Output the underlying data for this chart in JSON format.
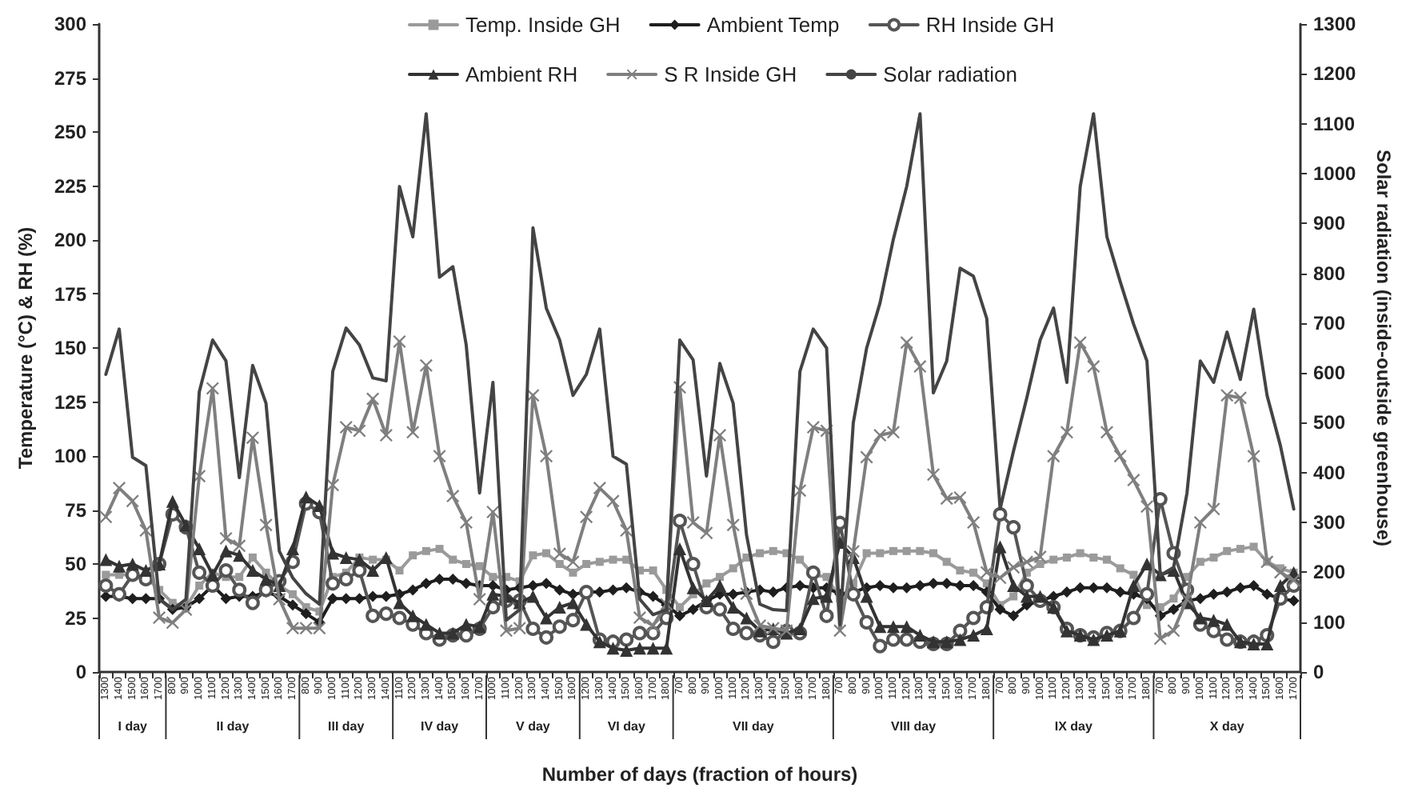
{
  "chart_data": {
    "type": "line",
    "xlabel": "Number of days (fraction of hours)",
    "ylabel": "Temperature (°C) & RH (%)",
    "y2label": "Solar radiation (inside-outside greenhouse)",
    "categories": [
      "1300",
      "1400",
      "1500",
      "1600",
      "1700",
      "800",
      "900",
      "1000",
      "1100",
      "1200",
      "1300",
      "1400",
      "1500",
      "1600",
      "1700",
      "800",
      "900",
      "1000",
      "1100",
      "1200",
      "1300",
      "1400",
      "1100",
      "1200",
      "1300",
      "1400",
      "1500",
      "1600",
      "1700",
      "1000",
      "1100",
      "1200",
      "1300",
      "1400",
      "1500",
      "1600",
      "1200",
      "1300",
      "1400",
      "1500",
      "1600",
      "1700",
      "1800",
      "700",
      "800",
      "900",
      "1000",
      "1100",
      "1200",
      "1300",
      "1400",
      "1500",
      "1600",
      "1700",
      "1800",
      "700",
      "800",
      "900",
      "1000",
      "1100",
      "1200",
      "1300",
      "1400",
      "1500",
      "1600",
      "1700",
      "1800",
      "700",
      "800",
      "900",
      "1000",
      "1100",
      "1200",
      "1300",
      "1400",
      "1500",
      "1600",
      "1700",
      "1800",
      "700",
      "800",
      "900",
      "1000",
      "1100",
      "1200",
      "1300",
      "1400",
      "1500",
      "1600",
      "1700"
    ],
    "annotations": [
      "I day",
      "II day",
      "III day",
      "IV day",
      "V day",
      "VI day",
      "VII day",
      "VIII day",
      "IX day",
      "X day"
    ],
    "series": [
      {
        "name": "Temp. Inside GH",
        "color": "#9a9a9a",
        "marker": "square",
        "values": [
          45,
          45,
          45,
          44,
          38,
          32,
          30,
          40,
          46,
          44,
          44,
          53,
          46,
          40,
          36,
          30,
          28,
          44,
          46,
          53,
          52,
          52,
          47,
          54,
          56,
          57,
          52,
          50,
          49,
          44,
          44,
          42,
          54,
          55,
          50,
          46,
          50,
          51,
          52,
          52,
          47,
          47,
          38,
          30,
          36,
          41,
          44,
          48,
          53,
          55,
          56,
          55,
          52,
          45,
          44,
          34,
          41,
          55,
          55,
          56,
          56,
          56,
          55,
          51,
          47,
          46,
          41,
          31,
          35,
          46,
          50,
          52,
          53,
          55,
          53,
          52,
          48,
          45,
          31,
          30,
          34,
          44,
          51,
          53,
          56,
          57,
          58,
          51,
          48,
          46
        ]
      },
      {
        "name": "Ambient Temp",
        "color": "#1e1e1e",
        "marker": "diamond",
        "values": [
          35,
          35,
          34,
          34,
          34,
          29,
          30,
          34,
          40,
          34,
          35,
          35,
          37,
          35,
          31,
          27,
          23,
          34,
          34,
          34,
          35,
          35,
          36,
          38,
          41,
          43,
          43,
          41,
          40,
          40,
          38,
          39,
          40,
          41,
          38,
          36,
          37,
          37,
          38,
          39,
          37,
          35,
          31,
          26,
          29,
          33,
          36,
          36,
          37,
          38,
          37,
          39,
          40,
          39,
          39,
          36,
          37,
          39,
          40,
          39,
          39,
          40,
          41,
          41,
          40,
          40,
          37,
          29,
          26,
          31,
          33,
          35,
          37,
          39,
          39,
          39,
          37,
          36,
          34,
          26,
          29,
          33,
          34,
          36,
          37,
          39,
          40,
          36,
          34,
          33
        ]
      },
      {
        "name": "RH Inside GH",
        "color": "#555555",
        "marker": "circle",
        "values": [
          40,
          36,
          45,
          43,
          50,
          73,
          67,
          46,
          40,
          47,
          38,
          32,
          38,
          42,
          51,
          78,
          74,
          41,
          43,
          47,
          26,
          27,
          25,
          22,
          18,
          15,
          17,
          17,
          20,
          30,
          33,
          33,
          20,
          16,
          21,
          24,
          37,
          15,
          14,
          15,
          18,
          18,
          25,
          70,
          50,
          30,
          29,
          20,
          18,
          17,
          14,
          19,
          18,
          46,
          26,
          69,
          36,
          23,
          12,
          15,
          15,
          14,
          13,
          13,
          19,
          25,
          30,
          73,
          67,
          40,
          33,
          30,
          20,
          17,
          16,
          18,
          19,
          25,
          36,
          80,
          55,
          38,
          22,
          19,
          15,
          14,
          14,
          17,
          34,
          40
        ]
      },
      {
        "name": "Ambient RH",
        "color": "#333333",
        "marker": "triangle",
        "values": [
          52,
          49,
          50,
          47,
          50,
          79,
          68,
          57,
          45,
          56,
          54,
          47,
          43,
          40,
          57,
          81,
          77,
          55,
          53,
          52,
          47,
          53,
          32,
          26,
          22,
          18,
          18,
          22,
          21,
          36,
          35,
          32,
          35,
          25,
          30,
          32,
          22,
          14,
          11,
          10,
          11,
          11,
          11,
          57,
          39,
          33,
          40,
          30,
          25,
          19,
          20,
          18,
          20,
          34,
          35,
          60,
          53,
          35,
          21,
          21,
          21,
          17,
          14,
          14,
          15,
          17,
          20,
          58,
          40,
          35,
          35,
          30,
          19,
          17,
          15,
          17,
          19,
          40,
          50,
          45,
          47,
          32,
          25,
          24,
          22,
          14,
          13,
          13,
          40,
          46
        ]
      },
      {
        "name": "S R Inside GH",
        "color": "#7f7f7f",
        "marker": "cross",
        "axis": "y2",
        "values": [
          311,
          369,
          343,
          284,
          109,
          99,
          125,
          393,
          569,
          268,
          253,
          470,
          295,
          146,
          88,
          88,
          88,
          375,
          491,
          484,
          548,
          475,
          663,
          481,
          615,
          433,
          353,
          300,
          146,
          321,
          83,
          88,
          555,
          433,
          237,
          221,
          311,
          369,
          343,
          284,
          109,
          93,
          136,
          571,
          300,
          279,
          475,
          295,
          157,
          93,
          88,
          83,
          364,
          491,
          484,
          83,
          242,
          431,
          475,
          481,
          661,
          613,
          396,
          348,
          350,
          300,
          200,
          189,
          210,
          221,
          231,
          433,
          481,
          661,
          613,
          481,
          433,
          385,
          332,
          67,
          83,
          146,
          300,
          327,
          555,
          550,
          433,
          221,
          200,
          184
        ]
      },
      {
        "name": "Solar radiation",
        "color": "#444444",
        "marker": "none",
        "axis": "y2",
        "values": [
          597,
          688,
          431,
          414,
          146,
          125,
          146,
          562,
          666,
          624,
          390,
          615,
          539,
          242,
          189,
          157,
          136,
          603,
          690,
          656,
          590,
          584,
          974,
          873,
          1120,
          792,
          813,
          656,
          359,
          581,
          104,
          125,
          891,
          730,
          666,
          555,
          597,
          688,
          433,
          417,
          146,
          115,
          125,
          666,
          626,
          393,
          619,
          539,
          275,
          136,
          125,
          123,
          603,
          688,
          650,
          95,
          500,
          650,
          740,
          868,
          974,
          1120,
          560,
          624,
          810,
          794,
          709,
          327,
          443,
          550,
          666,
          730,
          581,
          974,
          1120,
          873,
          783,
          698,
          624,
          194,
          210,
          359,
          624,
          581,
          682,
          587,
          728,
          555,
          454,
          327
        ]
      }
    ],
    "ylim": [
      0,
      300
    ],
    "yticks": [
      0,
      25,
      50,
      75,
      100,
      125,
      150,
      175,
      200,
      225,
      250,
      275,
      300
    ],
    "y2lim": [
      0,
      1300
    ],
    "y2ticks": [
      0,
      100,
      200,
      300,
      400,
      500,
      600,
      700,
      800,
      900,
      1000,
      1100,
      1200,
      1300
    ],
    "grid": false,
    "legend": "top"
  }
}
